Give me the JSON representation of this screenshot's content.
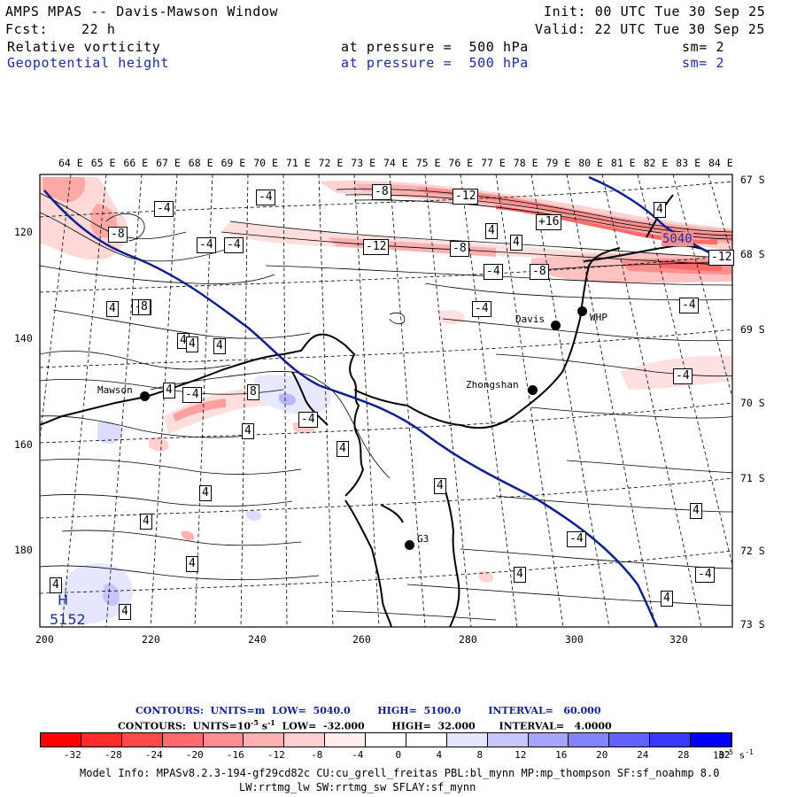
{
  "header": {
    "title": "AMPS MPAS -- Davis-Mawson Window",
    "init": "Init: 00 UTC Tue 30 Sep 25",
    "fcst_label": "Fcst:",
    "fcst_value": "22 h",
    "valid": "Valid: 22 UTC Tue 30 Sep 25",
    "field1": {
      "name": "Relative vorticity",
      "level": "at pressure =  500 hPa",
      "smooth": "sm= 2"
    },
    "field2": {
      "name": "Geopotential height",
      "level": "at pressure =  500 hPa",
      "smooth": "sm= 2"
    }
  },
  "map": {
    "top_lon_labels": [
      "64 E",
      "65 E",
      "66 E",
      "67 E",
      "68 E",
      "69 E",
      "70 E",
      "71 E",
      "72 E",
      "73 E",
      "74 E",
      "75 E",
      "76 E",
      "77 E",
      "78 E",
      "79 E",
      "80 E",
      "81 E",
      "82 E",
      "83 E",
      "84 E"
    ],
    "right_lat_labels": [
      "67 S",
      "68 S",
      "69 S",
      "70 S",
      "71 S",
      "72 S",
      "73 S"
    ],
    "bottom_x_labels": [
      "200",
      "220",
      "240",
      "260",
      "280",
      "300",
      "320"
    ],
    "left_y_labels": [
      "120",
      "140",
      "160",
      "180"
    ],
    "stations": [
      {
        "name": "Mawson"
      },
      {
        "name": "Davis"
      },
      {
        "name": "WHP"
      },
      {
        "name": "Zhongshan"
      },
      {
        "name": "G3"
      }
    ],
    "contour_labels": [
      "-4",
      "-4",
      "-8",
      "-4",
      "-4",
      "-8",
      "-12",
      "-12",
      "+16",
      "-8",
      "-12",
      "4",
      "4",
      "4",
      "-4",
      "-8",
      "-4",
      "-4",
      "-4",
      "4",
      "4",
      "4",
      "4",
      "-4",
      "8",
      "-4",
      "4",
      "4",
      "4",
      "4",
      "4",
      "4",
      "-4",
      "4",
      "-4",
      "4",
      "4",
      "4",
      "-4",
      "8",
      "4",
      "4",
      "5040"
    ],
    "height_labels": {
      "high_letter": "H",
      "high_value": "5152",
      "low_value": "5040"
    }
  },
  "footer": {
    "contours1": "CONTOURS:  UNITS=m  LOW=  5040.0        HIGH=  5100.0        INTERVAL=   60.000",
    "contours2_a": "CONTOURS:  UNITS=10",
    "contours2_exp": "-5",
    "contours2_b": " s",
    "contours2_exp2": "-1",
    "contours2_c": "  LOW=  -32.000        HIGH=  32.000       INTERVAL=   4.0000",
    "colorbar_ticks": [
      "-32",
      "-28",
      "-24",
      "-20",
      "-16",
      "-12",
      "-8",
      "-4",
      "0",
      "4",
      "8",
      "12",
      "16",
      "20",
      "24",
      "28",
      "32"
    ],
    "colorbar_units": "10",
    "colorbar_units_exp": "-5",
    "colorbar_units_s": "s",
    "colorbar_units_exp2": "-1",
    "colorbar_colors": [
      "#ff0000",
      "#ff2a2a",
      "#ff4a4a",
      "#ff6b6b",
      "#ff8f8f",
      "#ffb0b0",
      "#ffcfcf",
      "#ffecec",
      "#ffffff",
      "#ffffff",
      "#e6e6ff",
      "#c6c6ff",
      "#a5a5ff",
      "#8484ff",
      "#6262ff",
      "#3a3aff",
      "#0000ff"
    ],
    "model_info1": "Model Info: MPASv8.2.3-194-gf29cd82c CU:cu_grell_freitas PBL:bl_mynn MP:mp_thompson SF:sf_noahmp 8.0",
    "model_info2": "LW:rrtmg_lw SW:rrtmg_sw SFLAY:sf_mynn"
  }
}
